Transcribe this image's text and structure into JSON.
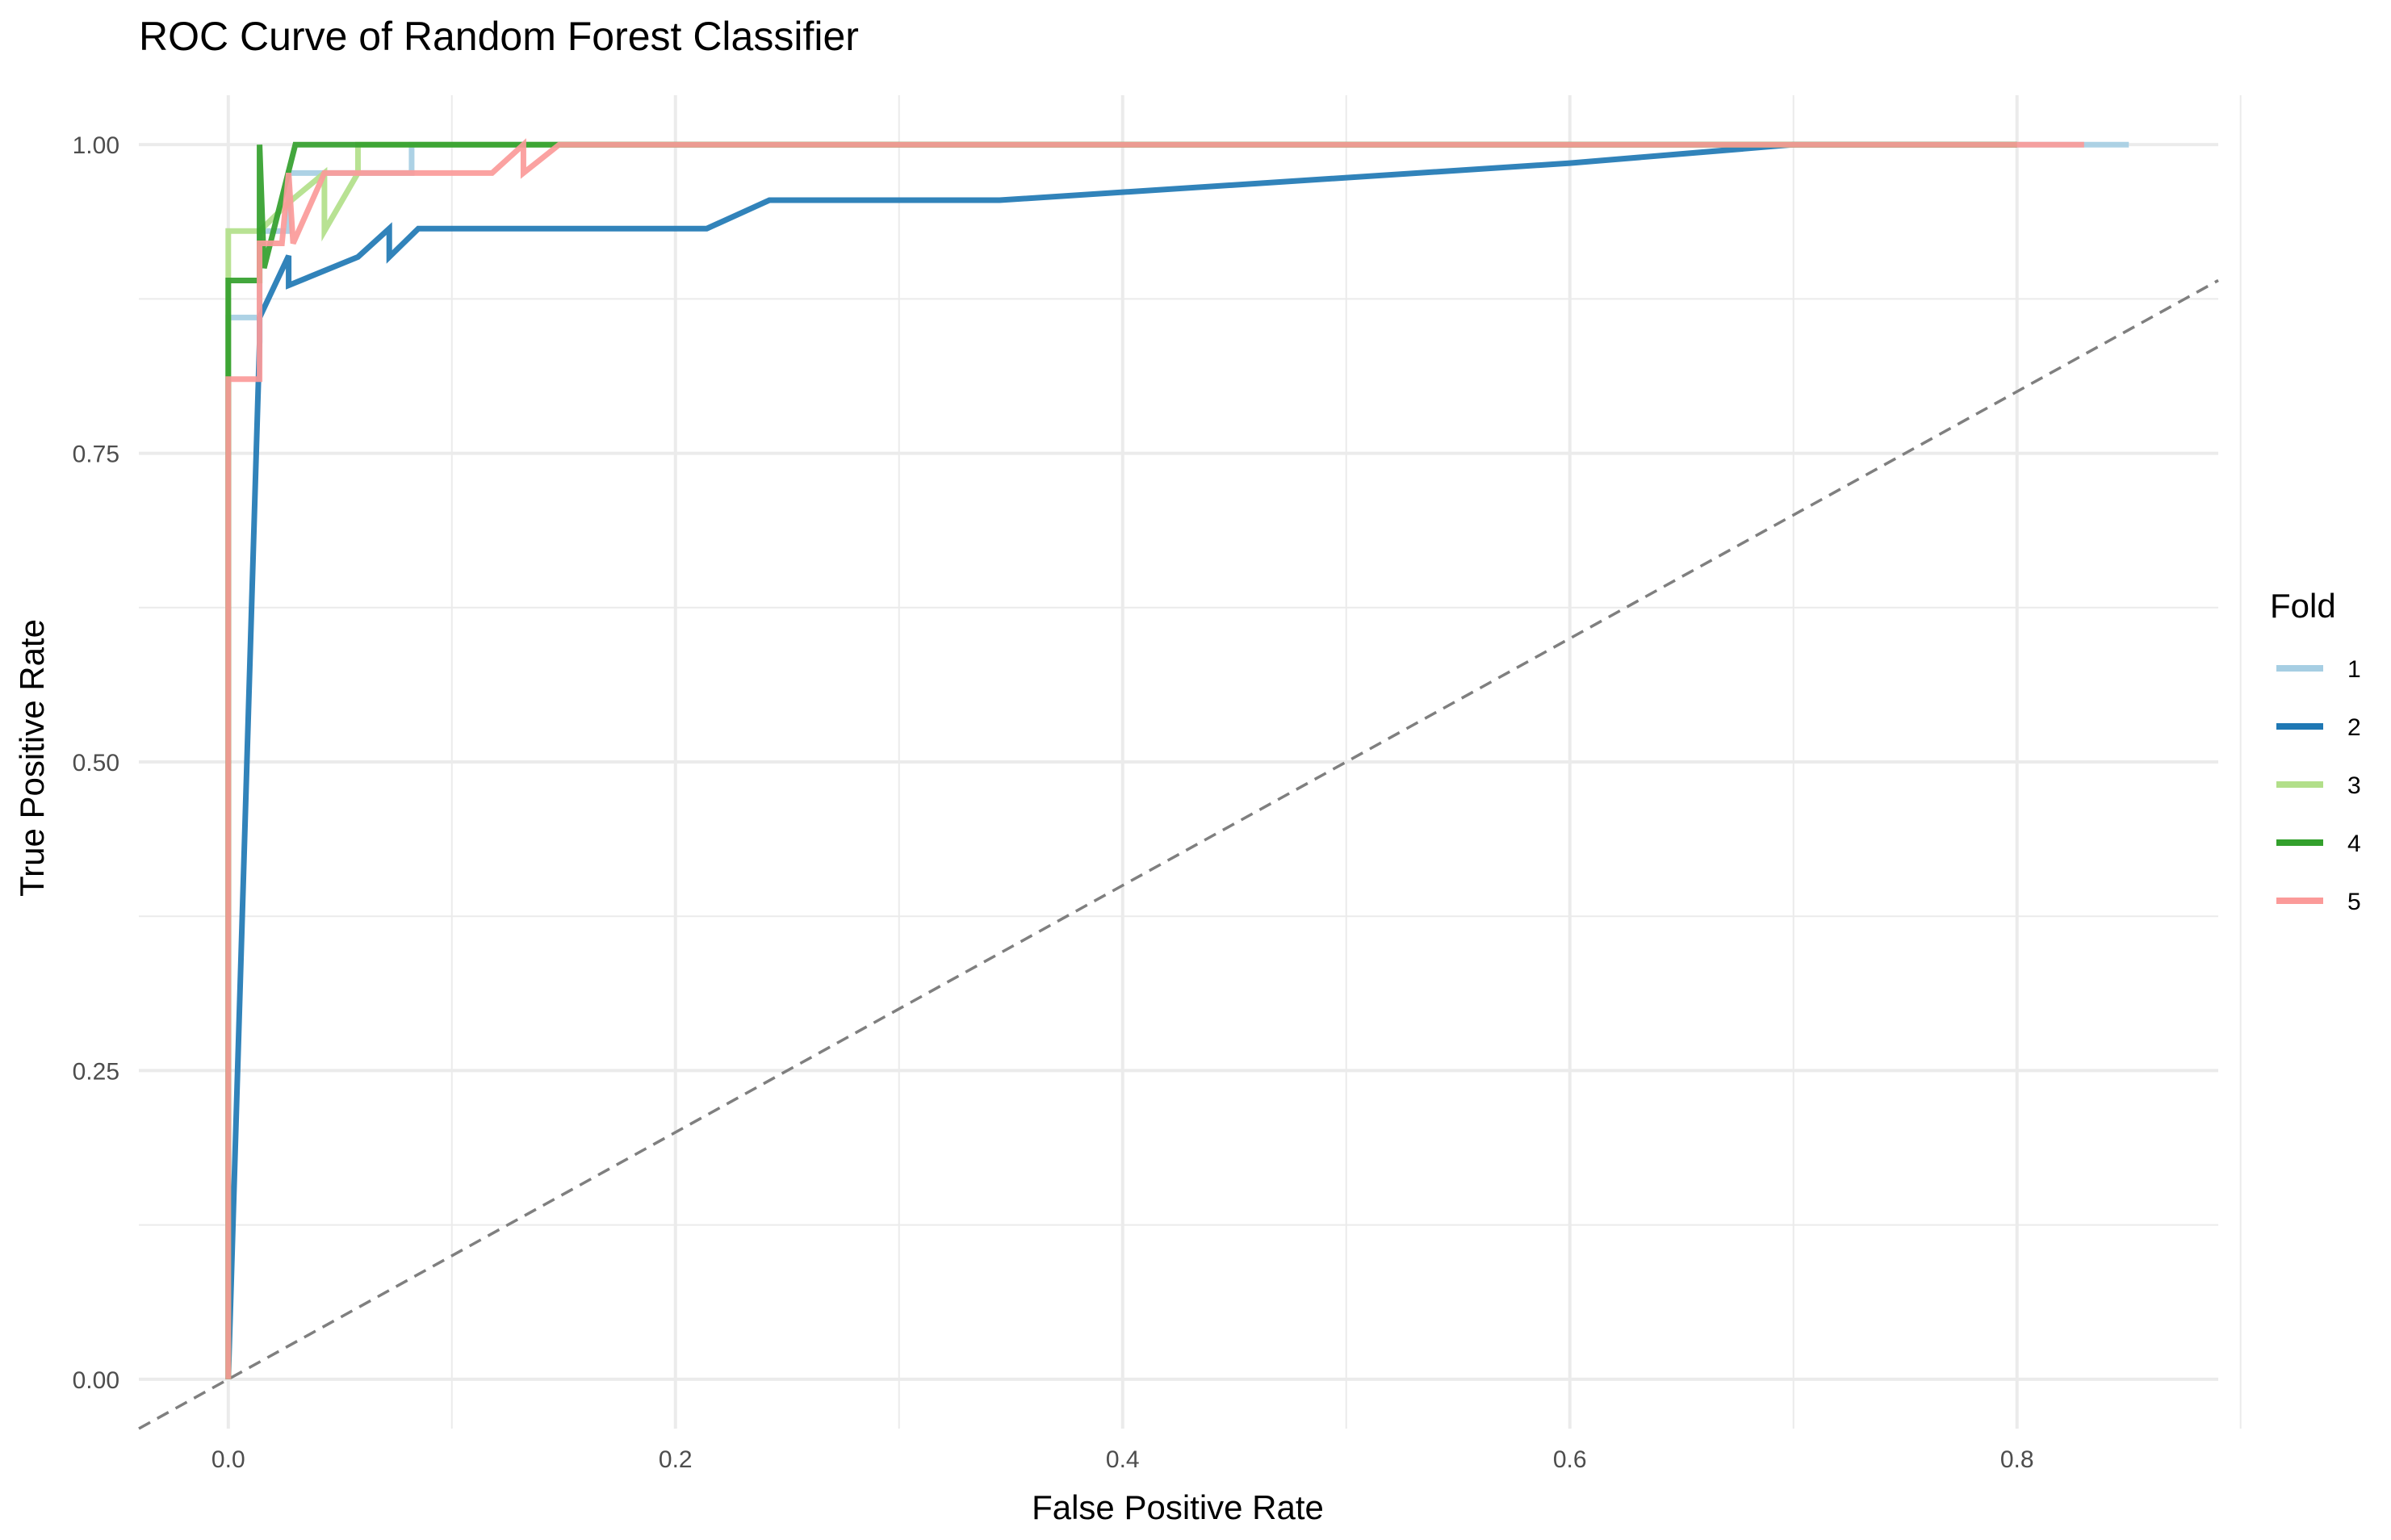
{
  "chart_data": {
    "type": "line",
    "title": "ROC Curve of Random Forest Classifier",
    "xlabel": "False Positive Rate",
    "ylabel": "True Positive Rate",
    "xlim": [
      -0.04,
      0.89
    ],
    "ylim": [
      -0.04,
      1.04
    ],
    "x_ticks": [
      0.0,
      0.2,
      0.4,
      0.6,
      0.8
    ],
    "x_tick_labels": [
      "0.0",
      "0.2",
      "0.4",
      "0.6",
      "0.8"
    ],
    "y_ticks": [
      0.0,
      0.25,
      0.5,
      0.75,
      1.0
    ],
    "y_tick_labels": [
      "0.00",
      "0.25",
      "0.50",
      "0.75",
      "1.00"
    ],
    "grid": true,
    "legend": {
      "title": "Fold",
      "position": "right"
    },
    "reference_line": {
      "style": "dashed",
      "color": "#7f7f7f",
      "points": [
        [
          -0.04,
          -0.04
        ],
        [
          0.89,
          0.89
        ]
      ]
    },
    "series": [
      {
        "name": "1",
        "color": "#a6cee3",
        "points": [
          [
            0,
            0
          ],
          [
            0,
            0.86
          ],
          [
            0.014,
            0.86
          ],
          [
            0.014,
            0.93
          ],
          [
            0.027,
            0.93
          ],
          [
            0.027,
            0.977
          ],
          [
            0.082,
            0.977
          ],
          [
            0.082,
            1.0
          ],
          [
            0.099,
            1.0
          ],
          [
            0.85,
            1.0
          ]
        ]
      },
      {
        "name": "2",
        "color": "#1f78b4",
        "points": [
          [
            0,
            0
          ],
          [
            0.014,
            0.84
          ],
          [
            0.014,
            0.86
          ],
          [
            0.027,
            0.91
          ],
          [
            0.027,
            0.886
          ],
          [
            0.058,
            0.909
          ],
          [
            0.072,
            0.932
          ],
          [
            0.072,
            0.909
          ],
          [
            0.085,
            0.932
          ],
          [
            0.214,
            0.932
          ],
          [
            0.242,
            0.955
          ],
          [
            0.345,
            0.955
          ],
          [
            0.6,
            0.985
          ],
          [
            0.7,
            1.0
          ],
          [
            0.8,
            1.0
          ]
        ]
      },
      {
        "name": "3",
        "color": "#b2df8a",
        "points": [
          [
            0,
            0
          ],
          [
            0,
            0.93
          ],
          [
            0.014,
            0.93
          ],
          [
            0.014,
            0.93
          ],
          [
            0.027,
            0.953
          ],
          [
            0.043,
            0.977
          ],
          [
            0.043,
            0.93
          ],
          [
            0.058,
            0.977
          ],
          [
            0.058,
            1.0
          ],
          [
            0.07,
            1.0
          ],
          [
            0.8,
            1.0
          ]
        ]
      },
      {
        "name": "4",
        "color": "#33a02c",
        "points": [
          [
            0,
            0
          ],
          [
            0,
            0.81
          ],
          [
            0,
            0.89
          ],
          [
            0.014,
            0.89
          ],
          [
            0.014,
            1.0
          ],
          [
            0.016,
            0.9
          ],
          [
            0.03,
            1.0
          ],
          [
            0.8,
            1.0
          ]
        ]
      },
      {
        "name": "5",
        "color": "#fb9a99",
        "points": [
          [
            0,
            0
          ],
          [
            0,
            0.81
          ],
          [
            0.014,
            0.81
          ],
          [
            0.014,
            0.92
          ],
          [
            0.024,
            0.92
          ],
          [
            0.027,
            0.977
          ],
          [
            0.029,
            0.92
          ],
          [
            0.043,
            0.977
          ],
          [
            0.118,
            0.977
          ],
          [
            0.132,
            1.0
          ],
          [
            0.132,
            0.977
          ],
          [
            0.148,
            1.0
          ],
          [
            0.83,
            1.0
          ]
        ]
      }
    ]
  }
}
